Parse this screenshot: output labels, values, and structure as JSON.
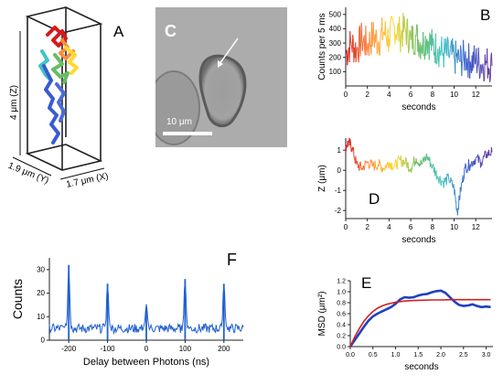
{
  "panels": {
    "A": {
      "letter": "A",
      "dim_z": "4 μm (Z)",
      "dim_y": "1.9 μm (Y)",
      "dim_x": "1.7 μm (X)"
    },
    "C": {
      "letter": "C",
      "scale_bar_label": "10 μm"
    },
    "B": {
      "letter": "B"
    },
    "D": {
      "letter": "D"
    },
    "F": {
      "letter": "F"
    },
    "E": {
      "letter": "E"
    }
  },
  "chart_data": [
    {
      "id": "B",
      "type": "line",
      "title": "",
      "xlabel": "seconds",
      "ylabel": "Counts per 5 ms",
      "xlim": [
        0,
        13.5
      ],
      "ylim": [
        0,
        550
      ],
      "xticks": [
        0,
        2,
        4,
        6,
        8,
        10,
        12
      ],
      "yticks": [
        100,
        200,
        300,
        400,
        500
      ],
      "color_gradient": [
        "#d7191c",
        "#fd8d3c",
        "#ffd92f",
        "#66bd63",
        "#40c4c4",
        "#3a5bd0",
        "#6a3d9a"
      ],
      "x": [
        0,
        0.5,
        1,
        1.5,
        2,
        2.5,
        3,
        3.5,
        4,
        4.5,
        5,
        5.5,
        6,
        6.5,
        7,
        7.5,
        8,
        8.5,
        9,
        9.5,
        10,
        10.5,
        11,
        11.5,
        12,
        12.5,
        13,
        13.5
      ],
      "values": [
        220,
        300,
        250,
        330,
        280,
        350,
        310,
        380,
        330,
        420,
        360,
        400,
        320,
        350,
        290,
        330,
        280,
        260,
        230,
        220,
        200,
        180,
        200,
        170,
        180,
        150,
        160,
        140
      ]
    },
    {
      "id": "D",
      "type": "line",
      "title": "",
      "xlabel": "seconds",
      "ylabel": "Z (μm)",
      "xlim": [
        0,
        13.5
      ],
      "ylim": [
        -2.4,
        1.6
      ],
      "xticks": [
        0,
        2,
        4,
        6,
        8,
        10,
        12
      ],
      "yticks": [
        1,
        0,
        -1,
        -2
      ],
      "color_gradient": [
        "#d7191c",
        "#fd8d3c",
        "#ffd92f",
        "#66bd63",
        "#40c4c4",
        "#3a5bd0",
        "#6a3d9a"
      ],
      "x": [
        0,
        0.3,
        0.6,
        1,
        1.5,
        2,
        2.5,
        3,
        3.5,
        4,
        4.5,
        5,
        5.5,
        6,
        6.5,
        7,
        7.5,
        8,
        8.5,
        9,
        9.5,
        10,
        10.3,
        10.6,
        11,
        11.5,
        12,
        12.5,
        13,
        13.5
      ],
      "values": [
        1.2,
        1.4,
        1.1,
        0.3,
        0.1,
        0.4,
        0.2,
        0.3,
        0.1,
        0.4,
        0.2,
        0.5,
        0.4,
        0.1,
        0.6,
        0.3,
        0.7,
        0.2,
        -0.3,
        -0.6,
        -0.4,
        -0.9,
        -2.1,
        -1.0,
        0.1,
        0.3,
        0.6,
        0.4,
        0.8,
        0.9
      ]
    },
    {
      "id": "F",
      "type": "line",
      "title": "",
      "xlabel": "Delay between Photons (ns)",
      "ylabel": "Counts",
      "xlim": [
        -250,
        250
      ],
      "ylim": [
        0,
        35
      ],
      "xticks": [
        -200,
        -100,
        0,
        100,
        200
      ],
      "yticks": [
        0,
        10,
        20,
        30
      ],
      "color": "#1f5fd0",
      "peaks": [
        {
          "x": -200,
          "y": 32
        },
        {
          "x": -100,
          "y": 24
        },
        {
          "x": 0,
          "y": 14
        },
        {
          "x": 100,
          "y": 26
        },
        {
          "x": 200,
          "y": 24
        }
      ],
      "baseline": 5
    },
    {
      "id": "E",
      "type": "line",
      "title": "",
      "xlabel": "seconds",
      "ylabel": "MSD (μm²)",
      "xlim": [
        0,
        3.15
      ],
      "ylim": [
        0,
        1.2
      ],
      "xticks": [
        0.0,
        0.5,
        1.0,
        1.5,
        2.0,
        2.5,
        3.0
      ],
      "xticklabels": [
        "0.0",
        "0.5",
        "1.0",
        "1.5",
        "2.0",
        "2.5",
        "3.0"
      ],
      "yticks": [
        0.0,
        0.2,
        0.4,
        0.6,
        0.8,
        1.0,
        1.2
      ],
      "yticklabels": [
        "0.0",
        "0.2",
        "0.4",
        "0.6",
        "0.8",
        "1.0",
        "1.2"
      ],
      "series": [
        {
          "color": "#2040c0",
          "x": [
            0,
            0.1,
            0.2,
            0.3,
            0.4,
            0.5,
            0.6,
            0.7,
            0.8,
            0.9,
            1.0,
            1.1,
            1.2,
            1.3,
            1.4,
            1.5,
            1.6,
            1.7,
            1.8,
            1.9,
            2.0,
            2.1,
            2.2,
            2.3,
            2.4,
            2.5,
            2.6,
            2.7,
            2.8,
            2.9,
            3.0,
            3.1
          ],
          "values": [
            0,
            0.12,
            0.24,
            0.36,
            0.47,
            0.55,
            0.6,
            0.64,
            0.68,
            0.72,
            0.78,
            0.86,
            0.9,
            0.89,
            0.9,
            0.93,
            0.95,
            0.96,
            0.99,
            1.01,
            1.02,
            0.98,
            0.9,
            0.82,
            0.76,
            0.74,
            0.75,
            0.77,
            0.74,
            0.72,
            0.73,
            0.72
          ]
        },
        {
          "color": "#d02020",
          "x": [
            0,
            0.1,
            0.2,
            0.3,
            0.4,
            0.5,
            0.6,
            0.7,
            0.8,
            0.9,
            1.0,
            1.2,
            1.4,
            1.6,
            1.8,
            2.0,
            2.2,
            2.4,
            2.6,
            2.8,
            3.0,
            3.1
          ],
          "values": [
            0,
            0.18,
            0.33,
            0.46,
            0.56,
            0.64,
            0.7,
            0.74,
            0.77,
            0.79,
            0.81,
            0.83,
            0.84,
            0.845,
            0.85,
            0.85,
            0.855,
            0.855,
            0.855,
            0.855,
            0.855,
            0.855
          ]
        }
      ]
    }
  ]
}
